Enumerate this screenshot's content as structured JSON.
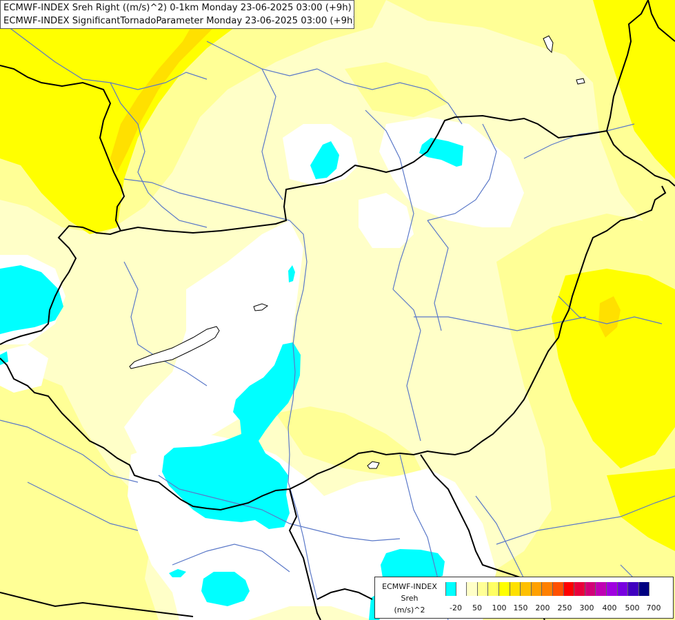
{
  "title": {
    "line1": "ECMWF-INDEX Sreh Right ((m/s)^2) 0-1km Monday 23-06-2025 03:00 (+9h)",
    "line2": "ECMWF-INDEX SignificantTornadoParameter Monday 23-06-2025 03:00 (+9h)"
  },
  "legend": {
    "line1": "ECMWF-INDEX",
    "line2": "Sreh",
    "line3": "(m/s)^2",
    "swatch_colors": [
      "#00ffff",
      "#ffffff",
      "#ffffc8",
      "#ffff96",
      "#ffff64",
      "#ffff00",
      "#ffe000",
      "#ffc000",
      "#ffa000",
      "#ff8000",
      "#ff5000",
      "#ff0000",
      "#e8003c",
      "#d20078",
      "#c000b4",
      "#a000e0",
      "#7800e0",
      "#4000c0",
      "#000080"
    ],
    "ticks": [
      "-20",
      "50",
      "100",
      "150",
      "200",
      "250",
      "300",
      "400",
      "500",
      "700"
    ]
  },
  "map_colors": {
    "low": "#00ffff",
    "zero": "#ffffff",
    "light": "#ffffc8",
    "mid": "#ffff96",
    "high": "#ffff00",
    "higher": "#ffe000",
    "border": "#000000",
    "river": "#5a78c8"
  }
}
